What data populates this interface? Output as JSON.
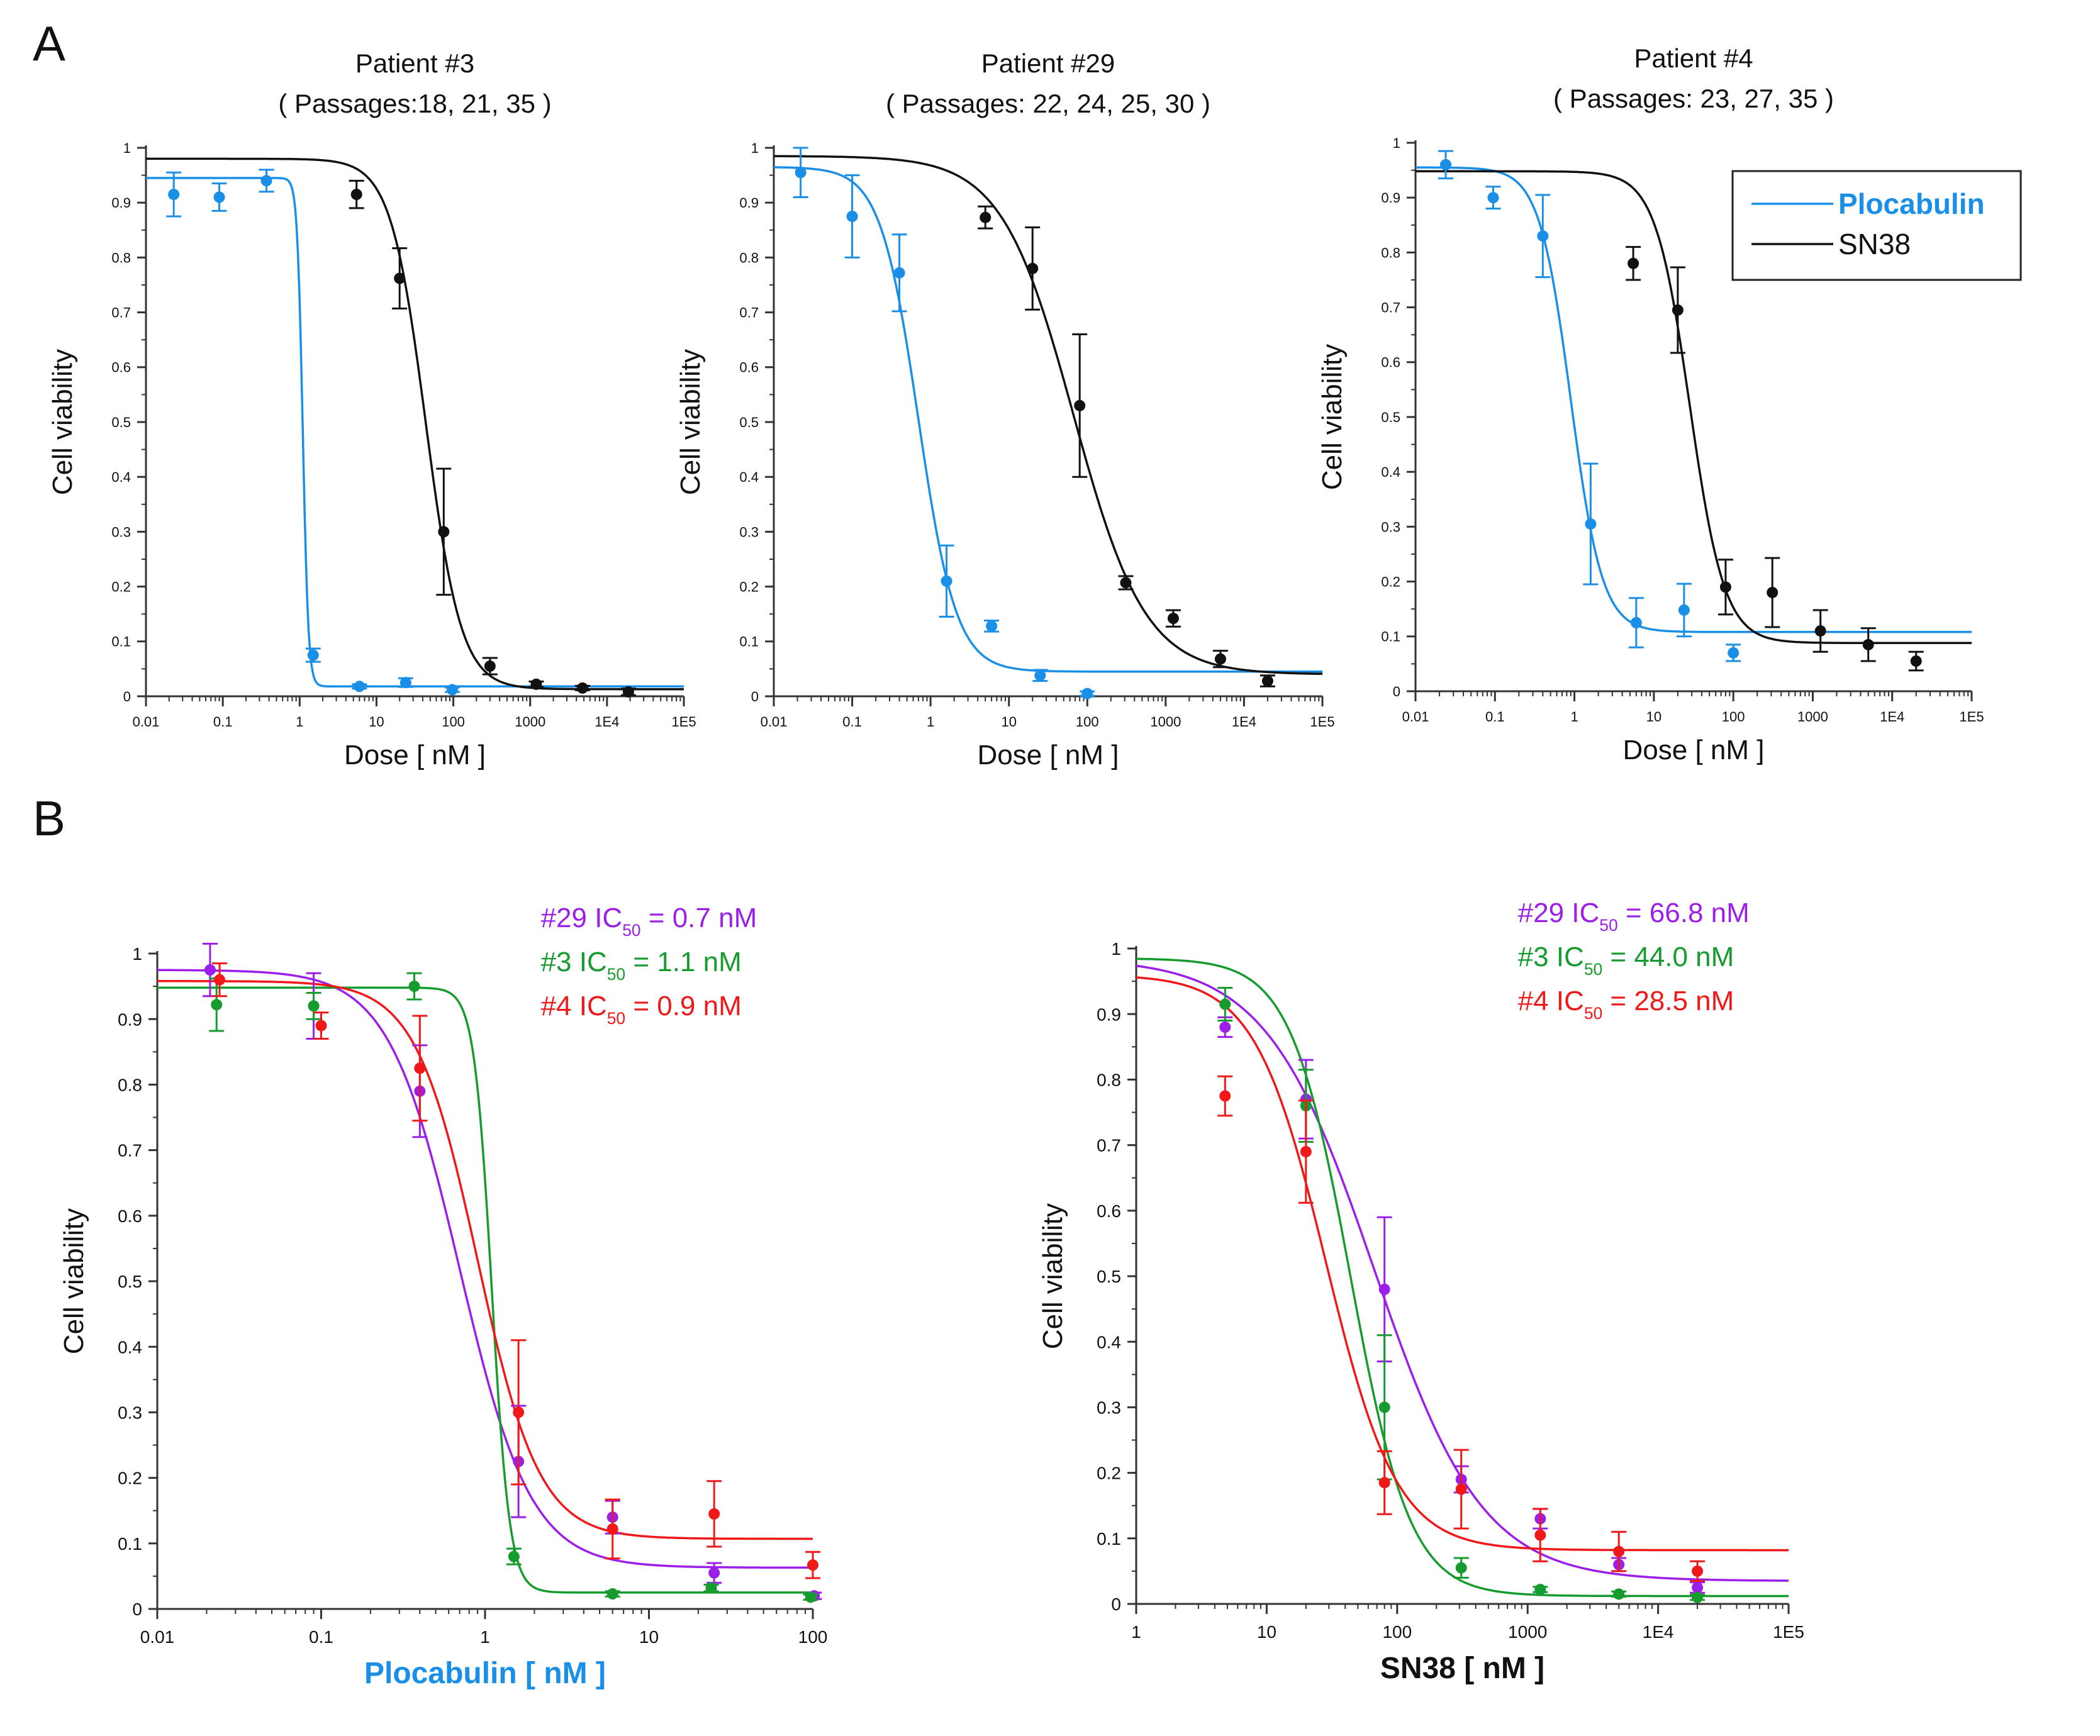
{
  "figure": {
    "panel_labels": [
      "A",
      "B"
    ],
    "colors": {
      "plocabulin": "#1a8fe8",
      "sn38": "#111111",
      "p29": "#9b1fe8",
      "p3": "#169b2e",
      "p4": "#f01818",
      "axis": "#333333"
    }
  },
  "chart_data": [
    {
      "id": "A1",
      "type": "scatter",
      "title": "Patient #3",
      "subtitle": "( Passages:18, 21, 35 )",
      "xlabel": "Dose [ nM ]",
      "ylabel": "Cell viability",
      "xscale": "log",
      "xlim": [
        0.01,
        100000
      ],
      "ylim": [
        0,
        1
      ],
      "xticks": [
        0.01,
        0.1,
        1,
        10,
        100,
        1000,
        10000,
        100000
      ],
      "xticklabels": [
        "0.01",
        "0.1",
        "1",
        "10",
        "100",
        "1000",
        "1E4",
        "1E5"
      ],
      "yticks": [
        0,
        0.1,
        0.2,
        0.3,
        0.4,
        0.5,
        0.6,
        0.7,
        0.8,
        0.9,
        1
      ],
      "yticklabels": [
        "0",
        "0.1",
        "0.2",
        "0.3",
        "0.4",
        "0.5",
        "0.6",
        "0.7",
        "0.8",
        "0.9",
        "1"
      ],
      "series": [
        {
          "name": "Plocabulin",
          "color": "#1a8fe8",
          "x": [
            0.023,
            0.09,
            0.37,
            1.5,
            6,
            24,
            97
          ],
          "y": [
            0.915,
            0.91,
            0.94,
            0.075,
            0.018,
            0.025,
            0.012
          ],
          "err": [
            0.04,
            0.025,
            0.02,
            0.012,
            0.004,
            0.008,
            0.004
          ],
          "fit": {
            "top": 0.945,
            "bottom": 0.018,
            "ic50": 1.1,
            "hill": 12
          }
        },
        {
          "name": "SN38",
          "color": "#111111",
          "x": [
            5.5,
            20,
            75,
            300,
            1200,
            4800,
            19000
          ],
          "y": [
            0.915,
            0.762,
            0.3,
            0.055,
            0.022,
            0.015,
            0.008
          ],
          "err": [
            0.025,
            0.055,
            0.115,
            0.015,
            0.005,
            0.004,
            0.006
          ],
          "fit": {
            "top": 0.98,
            "bottom": 0.013,
            "ic50": 44,
            "hill": 1.9
          }
        }
      ]
    },
    {
      "id": "A2",
      "type": "scatter",
      "title": "Patient #29",
      "subtitle": "( Passages: 22, 24, 25, 30 )",
      "xlabel": "Dose [ nM ]",
      "ylabel": "Cell viability",
      "xscale": "log",
      "xlim": [
        0.01,
        100000
      ],
      "ylim": [
        0,
        1
      ],
      "xticks": [
        0.01,
        0.1,
        1,
        10,
        100,
        1000,
        10000,
        100000
      ],
      "xticklabels": [
        "0.01",
        "0.1",
        "1",
        "10",
        "100",
        "1000",
        "1E4",
        "1E5"
      ],
      "yticks": [
        0,
        0.1,
        0.2,
        0.3,
        0.4,
        0.5,
        0.6,
        0.7,
        0.8,
        0.9,
        1
      ],
      "yticklabels": [
        "0",
        "0.1",
        "0.2",
        "0.3",
        "0.4",
        "0.5",
        "0.6",
        "0.7",
        "0.8",
        "0.9",
        "1"
      ],
      "series": [
        {
          "name": "Plocabulin",
          "color": "#1a8fe8",
          "x": [
            0.022,
            0.1,
            0.4,
            1.6,
            6,
            25,
            100
          ],
          "y": [
            0.955,
            0.875,
            0.772,
            0.21,
            0.128,
            0.038,
            0.005
          ],
          "err": [
            0.045,
            0.075,
            0.07,
            0.065,
            0.01,
            0.01,
            0.004
          ],
          "fit": {
            "top": 0.965,
            "bottom": 0.045,
            "ic50": 0.7,
            "hill": 1.8
          }
        },
        {
          "name": "SN38",
          "color": "#111111",
          "x": [
            5,
            20,
            80,
            310,
            1250,
            5000,
            20000
          ],
          "y": [
            0.873,
            0.78,
            0.53,
            0.207,
            0.142,
            0.068,
            0.028
          ],
          "err": [
            0.02,
            0.075,
            0.13,
            0.012,
            0.015,
            0.015,
            0.01
          ],
          "fit": {
            "top": 0.985,
            "bottom": 0.04,
            "ic50": 66.8,
            "hill": 0.95
          }
        }
      ]
    },
    {
      "id": "A3",
      "type": "scatter",
      "title": "Patient #4",
      "subtitle": "( Passages: 23, 27, 35 )",
      "xlabel": "Dose [ nM ]",
      "ylabel": "Cell viability",
      "xscale": "log",
      "xlim": [
        0.01,
        100000
      ],
      "ylim": [
        0,
        1
      ],
      "xticks": [
        0.01,
        0.1,
        1,
        10,
        100,
        1000,
        10000,
        100000
      ],
      "xticklabels": [
        "0.01",
        "0.1",
        "1",
        "10",
        "100",
        "1000",
        "1E4",
        "1E5"
      ],
      "yticks": [
        0,
        0.1,
        0.2,
        0.3,
        0.4,
        0.5,
        0.6,
        0.7,
        0.8,
        0.9,
        1
      ],
      "yticklabels": [
        "0",
        "0.1",
        "0.2",
        "0.3",
        "0.4",
        "0.5",
        "0.6",
        "0.7",
        "0.8",
        "0.9",
        "1"
      ],
      "legend": {
        "position": "top-right",
        "entries": [
          {
            "label": "Plocabulin",
            "color": "#1a8fe8",
            "bold": true
          },
          {
            "label": "SN38",
            "color": "#111111",
            "bold": false
          }
        ]
      },
      "series": [
        {
          "name": "Plocabulin",
          "color": "#1a8fe8",
          "x": [
            0.024,
            0.095,
            0.4,
            1.6,
            6,
            24,
            100
          ],
          "y": [
            0.96,
            0.9,
            0.83,
            0.305,
            0.125,
            0.148,
            0.07
          ],
          "err": [
            0.025,
            0.02,
            0.075,
            0.11,
            0.045,
            0.048,
            0.015
          ],
          "fit": {
            "top": 0.955,
            "bottom": 0.108,
            "ic50": 0.9,
            "hill": 2.2
          }
        },
        {
          "name": "SN38",
          "color": "#111111",
          "x": [
            5.5,
            20,
            80,
            310,
            1250,
            5000,
            20000
          ],
          "y": [
            0.78,
            0.695,
            0.19,
            0.18,
            0.11,
            0.085,
            0.055
          ],
          "err": [
            0.03,
            0.078,
            0.05,
            0.063,
            0.038,
            0.03,
            0.017
          ],
          "fit": {
            "top": 0.948,
            "bottom": 0.088,
            "ic50": 28.5,
            "hill": 2.0
          }
        }
      ]
    },
    {
      "id": "B1",
      "type": "scatter",
      "title": "",
      "xlabel": "Plocabulin [ nM ]",
      "xlabel_color": "#1a8fe8",
      "ylabel": "Cell viability",
      "xscale": "log",
      "xlim": [
        0.01,
        100
      ],
      "ylim": [
        0,
        1
      ],
      "xticks": [
        0.01,
        0.1,
        1,
        10,
        100
      ],
      "xticklabels": [
        "0.01",
        "0.1",
        "1",
        "10",
        "100"
      ],
      "yticks": [
        0,
        0.1,
        0.2,
        0.3,
        0.4,
        0.5,
        0.6,
        0.7,
        0.8,
        0.9,
        1
      ],
      "yticklabels": [
        "0",
        "0.1",
        "0.2",
        "0.3",
        "0.4",
        "0.5",
        "0.6",
        "0.7",
        "0.8",
        "0.9",
        "1"
      ],
      "annotations": [
        {
          "prefix": "#29 IC",
          "sub": "50",
          "suffix": " = 0.7 nM",
          "color": "#9b1fe8"
        },
        {
          "prefix": "#3 IC",
          "sub": "50",
          "suffix": " = 1.1 nM",
          "color": "#169b2e"
        },
        {
          "prefix": "#4 IC",
          "sub": "50",
          "suffix": " = 0.9 nM",
          "color": "#f01818"
        }
      ],
      "series": [
        {
          "name": "#29",
          "color": "#9b1fe8",
          "x": [
            0.021,
            0.09,
            0.4,
            1.6,
            6,
            25,
            102
          ],
          "y": [
            0.975,
            0.92,
            0.79,
            0.225,
            0.14,
            0.055,
            0.02
          ],
          "err": [
            0.04,
            0.05,
            0.07,
            0.085,
            0.025,
            0.015,
            0.005
          ],
          "fit": {
            "top": 0.975,
            "bottom": 0.063,
            "ic50": 0.7,
            "hill": 2.0
          }
        },
        {
          "name": "#3",
          "color": "#169b2e",
          "x": [
            0.023,
            0.09,
            0.37,
            1.5,
            6,
            24,
            97
          ],
          "y": [
            0.922,
            0.92,
            0.95,
            0.08,
            0.023,
            0.032,
            0.018
          ],
          "err": [
            0.04,
            0.02,
            0.02,
            0.012,
            0.004,
            0.005,
            0.004
          ],
          "fit": {
            "top": 0.948,
            "bottom": 0.025,
            "ic50": 1.1,
            "hill": 8
          }
        },
        {
          "name": "#4",
          "color": "#f01818",
          "x": [
            0.024,
            0.1,
            0.4,
            1.6,
            6,
            25,
            100
          ],
          "y": [
            0.96,
            0.89,
            0.825,
            0.3,
            0.122,
            0.145,
            0.067
          ],
          "err": [
            0.025,
            0.02,
            0.08,
            0.11,
            0.045,
            0.05,
            0.02
          ],
          "fit": {
            "top": 0.958,
            "bottom": 0.107,
            "ic50": 0.9,
            "hill": 2.3
          }
        }
      ]
    },
    {
      "id": "B2",
      "type": "scatter",
      "title": "",
      "xlabel": "SN38 [ nM ]",
      "xlabel_color": "#111111",
      "ylabel": "Cell viability",
      "xscale": "log",
      "xlim": [
        1,
        100000
      ],
      "ylim": [
        0,
        1
      ],
      "xticks": [
        1,
        10,
        100,
        1000,
        10000,
        100000
      ],
      "xticklabels": [
        "1",
        "10",
        "100",
        "1000",
        "1E4",
        "1E5"
      ],
      "yticks": [
        0,
        0.1,
        0.2,
        0.3,
        0.4,
        0.5,
        0.6,
        0.7,
        0.8,
        0.9,
        1
      ],
      "yticklabels": [
        "0",
        "0.1",
        "0.2",
        "0.3",
        "0.4",
        "0.5",
        "0.6",
        "0.7",
        "0.8",
        "0.9",
        "1"
      ],
      "annotations": [
        {
          "prefix": "#29 IC",
          "sub": "50",
          "suffix": " = 66.8 nM",
          "color": "#9b1fe8"
        },
        {
          "prefix": "#3 IC",
          "sub": "50",
          "suffix": " = 44.0 nM",
          "color": "#169b2e"
        },
        {
          "prefix": "#4 IC",
          "sub": "50",
          "suffix": " = 28.5 nM",
          "color": "#f01818"
        }
      ],
      "series": [
        {
          "name": "#29",
          "color": "#9b1fe8",
          "x": [
            4.8,
            20,
            80,
            310,
            1250,
            5000,
            20000
          ],
          "y": [
            0.88,
            0.77,
            0.48,
            0.19,
            0.13,
            0.06,
            0.025
          ],
          "err": [
            0.015,
            0.06,
            0.11,
            0.02,
            0.015,
            0.01,
            0.008
          ],
          "fit": {
            "top": 0.985,
            "bottom": 0.035,
            "ic50": 66.8,
            "hill": 1.05
          }
        },
        {
          "name": "#3",
          "color": "#169b2e",
          "x": [
            4.8,
            20,
            80,
            310,
            1250,
            5000,
            20000
          ],
          "y": [
            0.915,
            0.76,
            0.3,
            0.055,
            0.022,
            0.015,
            0.01
          ],
          "err": [
            0.025,
            0.055,
            0.11,
            0.015,
            0.004,
            0.004,
            0.004
          ],
          "fit": {
            "top": 0.985,
            "bottom": 0.012,
            "ic50": 44,
            "hill": 1.9
          }
        },
        {
          "name": "#4",
          "color": "#f01818",
          "x": [
            4.8,
            20,
            80,
            310,
            1250,
            5000,
            20000
          ],
          "y": [
            0.775,
            0.69,
            0.185,
            0.175,
            0.105,
            0.08,
            0.05
          ],
          "err": [
            0.03,
            0.078,
            0.048,
            0.06,
            0.04,
            0.03,
            0.015
          ],
          "fit": {
            "top": 0.96,
            "bottom": 0.082,
            "ic50": 28.5,
            "hill": 1.6
          }
        }
      ]
    }
  ]
}
